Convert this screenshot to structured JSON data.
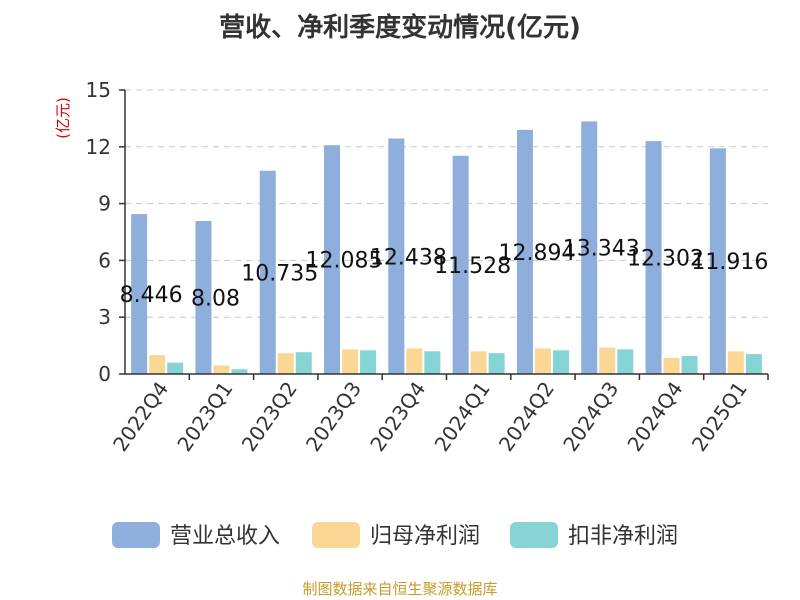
{
  "chart_data": {
    "type": "bar",
    "title": "营收、净利季度变动情况(亿元)",
    "unit_label": "(亿元)",
    "categories": [
      "2022Q4",
      "2023Q1",
      "2023Q2",
      "2023Q3",
      "2023Q4",
      "2024Q1",
      "2024Q2",
      "2024Q3",
      "2024Q4",
      "2025Q1"
    ],
    "series": [
      {
        "name": "营业总收入",
        "color": "#8eaedb",
        "values": [
          8.446,
          8.08,
          10.735,
          12.085,
          12.438,
          11.528,
          12.894,
          13.343,
          12.302,
          11.916
        ],
        "labels": [
          "8.446",
          "8.08",
          "10.735",
          "12.085",
          "12.438",
          "11.528",
          "12.894",
          "13.343",
          "12.302",
          "11.916"
        ]
      },
      {
        "name": "归母净利润",
        "color": "#fbd796",
        "values": [
          1.0,
          0.45,
          1.1,
          1.3,
          1.35,
          1.2,
          1.35,
          1.4,
          0.85,
          1.2
        ]
      },
      {
        "name": "扣非净利润",
        "color": "#86d4d6",
        "values": [
          0.6,
          0.25,
          1.15,
          1.25,
          1.2,
          1.1,
          1.25,
          1.3,
          0.95,
          1.05
        ]
      }
    ],
    "ylim": [
      0,
      15
    ],
    "yticks": [
      0,
      3,
      6,
      9,
      12,
      15
    ],
    "grid": true,
    "legend_position": "bottom"
  },
  "source": "制图数据来自恒生聚源数据库"
}
